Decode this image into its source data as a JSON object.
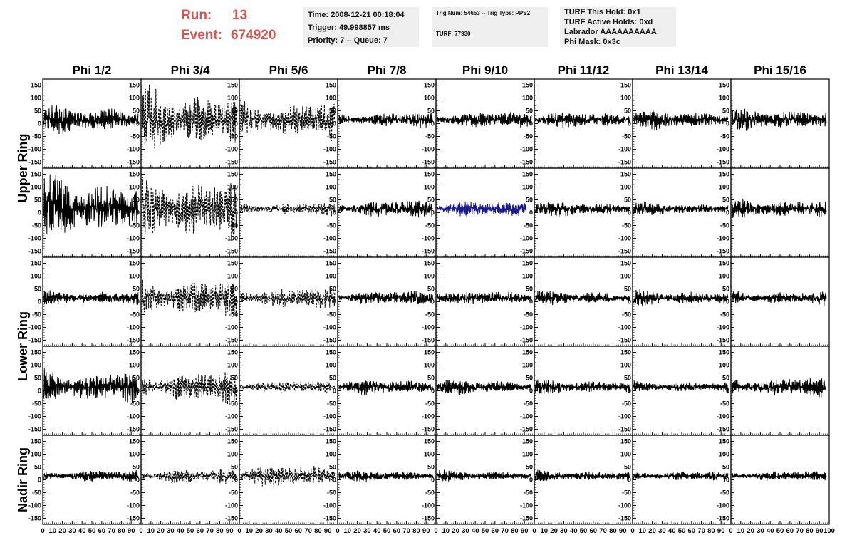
{
  "header": {
    "run_label": "Run:",
    "run_value": "13",
    "event_label": "Event:",
    "event_value": "674920",
    "info_box_1": [
      "Time: 2008-12-21 00:18:04",
      "Trigger: 49.998857 ms",
      "Priority: 7 -- Queue: 7"
    ],
    "info_box_2": {
      "trig_line": "Trig Num: 54653 -- Trig Type: PPS2",
      "turf_line": "TURF: 77930"
    },
    "info_box_3": [
      "TURF This Hold: 0x1",
      "TURF Active Holds: 0xd",
      "Labrador AAAAAAAAAA",
      "Phi Mask: 0x3c"
    ]
  },
  "colors": {
    "run_text": "#d9534f",
    "trace_default": "#000000",
    "trace_highlight": "#1a1a8c",
    "info_bg": "#efefef"
  },
  "chart_data": {
    "type": "line",
    "column_titles": [
      "Phi 1/2",
      "Phi 3/4",
      "Phi 5/6",
      "Phi 7/8",
      "Phi 9/10",
      "Phi 11/12",
      "Phi 13/14",
      "Phi 15/16"
    ],
    "ring_labels": [
      {
        "text": "Upper Ring",
        "rows": [
          0,
          1
        ]
      },
      {
        "text": "Lower Ring",
        "rows": [
          2,
          3
        ]
      },
      {
        "text": "Nadir Ring",
        "rows": [
          4
        ]
      }
    ],
    "xlim": [
      0,
      100
    ],
    "ylim": [
      -160,
      160
    ],
    "x_tick_labels": [
      "0",
      "10",
      "20",
      "30",
      "40",
      "50",
      "60",
      "70",
      "80",
      "90",
      "100"
    ],
    "y_tick_labels": [
      "150",
      "100",
      "50",
      "0",
      "-50",
      "-100",
      "-150"
    ],
    "y_tick_values": [
      150,
      100,
      50,
      0,
      -50,
      -100,
      -150
    ],
    "last_x_tick_label": "100",
    "trace_amplitudes": [
      [
        40,
        85,
        55,
        22,
        22,
        22,
        26,
        32
      ],
      [
        85,
        95,
        18,
        25,
        22,
        20,
        18,
        28
      ],
      [
        22,
        55,
        30,
        20,
        20,
        20,
        22,
        20
      ],
      [
        50,
        45,
        18,
        20,
        20,
        20,
        16,
        28
      ],
      [
        18,
        22,
        30,
        15,
        15,
        16,
        15,
        15
      ]
    ],
    "trace_styles": [
      [
        "solid",
        "dashed",
        "dashed",
        "solid",
        "solid",
        "solid",
        "solid",
        "solid"
      ],
      [
        "solid",
        "dashed",
        "dashed",
        "solid",
        "blue",
        "solid",
        "solid",
        "solid"
      ],
      [
        "solid",
        "dashed",
        "dashed",
        "solid",
        "solid",
        "solid",
        "solid",
        "solid"
      ],
      [
        "solid",
        "dashed",
        "dashed",
        "solid",
        "solid",
        "solid",
        "solid",
        "solid"
      ],
      [
        "solid",
        "dashed",
        "dashed",
        "solid",
        "solid",
        "solid",
        "solid",
        "solid"
      ]
    ]
  }
}
